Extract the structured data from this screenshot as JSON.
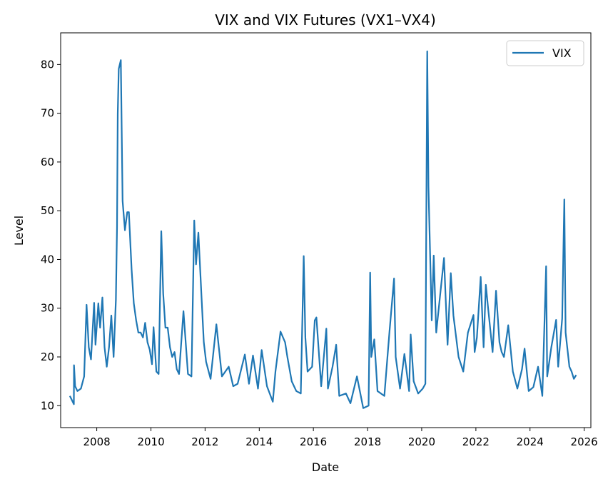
{
  "chart_data": {
    "type": "line",
    "title": "VIX and VIX Futures (VX1–VX4)",
    "xlabel": "Date",
    "ylabel": "Level",
    "xlim": [
      "2006-09-01",
      "2026-04-01"
    ],
    "ylim": [
      5.5,
      86.5
    ],
    "x_ticks": [
      "2008",
      "2010",
      "2012",
      "2014",
      "2016",
      "2018",
      "2020",
      "2022",
      "2024",
      "2026"
    ],
    "y_ticks": [
      10,
      20,
      30,
      40,
      50,
      60,
      70,
      80
    ],
    "grid": false,
    "legend_position": "top-right",
    "series": [
      {
        "name": "VIX",
        "color": "#1f77b4",
        "x": [
          "2007-01-03",
          "2007-02-26",
          "2007-02-28",
          "2007-03-15",
          "2007-04-15",
          "2007-06-01",
          "2007-07-15",
          "2007-08-16",
          "2007-09-15",
          "2007-10-15",
          "2007-11-26",
          "2007-12-15",
          "2008-01-22",
          "2008-02-15",
          "2008-03-17",
          "2008-04-15",
          "2008-05-15",
          "2008-06-15",
          "2008-07-15",
          "2008-08-15",
          "2008-09-15",
          "2008-09-30",
          "2008-10-10",
          "2008-10-24",
          "2008-11-20",
          "2008-12-15",
          "2009-01-15",
          "2009-02-15",
          "2009-03-09",
          "2009-04-15",
          "2009-05-15",
          "2009-06-15",
          "2009-07-15",
          "2009-08-15",
          "2009-09-15",
          "2009-10-15",
          "2009-11-15",
          "2009-12-15",
          "2010-01-15",
          "2010-02-05",
          "2010-03-15",
          "2010-04-15",
          "2010-05-20",
          "2010-06-15",
          "2010-07-15",
          "2010-08-15",
          "2010-09-15",
          "2010-10-15",
          "2010-11-15",
          "2010-12-15",
          "2011-01-15",
          "2011-03-16",
          "2011-05-15",
          "2011-07-01",
          "2011-08-08",
          "2011-09-01",
          "2011-10-03",
          "2011-11-15",
          "2011-12-15",
          "2012-01-15",
          "2012-03-15",
          "2012-06-01",
          "2012-08-15",
          "2012-11-15",
          "2013-01-15",
          "2013-03-15",
          "2013-06-20",
          "2013-08-15",
          "2013-10-08",
          "2013-12-15",
          "2014-02-03",
          "2014-04-15",
          "2014-07-03",
          "2014-08-07",
          "2014-10-15",
          "2014-12-15",
          "2015-01-15",
          "2015-03-15",
          "2015-05-15",
          "2015-07-15",
          "2015-08-24",
          "2015-09-15",
          "2015-10-15",
          "2015-12-15",
          "2016-01-20",
          "2016-02-11",
          "2016-04-15",
          "2016-06-24",
          "2016-07-15",
          "2016-09-15",
          "2016-11-04",
          "2016-12-15",
          "2017-03-15",
          "2017-05-15",
          "2017-08-11",
          "2017-11-03",
          "2018-01-15",
          "2018-02-05",
          "2018-02-20",
          "2018-04-02",
          "2018-05-15",
          "2018-08-15",
          "2018-10-24",
          "2018-12-24",
          "2019-01-15",
          "2019-03-15",
          "2019-05-13",
          "2019-07-15",
          "2019-08-05",
          "2019-09-15",
          "2019-11-15",
          "2020-01-15",
          "2020-02-20",
          "2020-03-16",
          "2020-04-01",
          "2020-05-15",
          "2020-06-11",
          "2020-07-15",
          "2020-09-08",
          "2020-10-28",
          "2020-12-15",
          "2021-01-27",
          "2021-03-04",
          "2021-05-12",
          "2021-07-15",
          "2021-09-15",
          "2021-11-30",
          "2021-12-15",
          "2022-01-15",
          "2022-03-07",
          "2022-04-15",
          "2022-05-15",
          "2022-06-15",
          "2022-08-15",
          "2022-09-30",
          "2022-11-15",
          "2022-12-15",
          "2023-01-15",
          "2023-03-13",
          "2023-05-15",
          "2023-07-15",
          "2023-09-15",
          "2023-10-20",
          "2023-12-15",
          "2024-02-15",
          "2024-04-19",
          "2024-06-15",
          "2024-08-05",
          "2024-08-20",
          "2024-10-15",
          "2024-12-18",
          "2025-01-15",
          "2025-03-10",
          "2025-04-08",
          "2025-04-25",
          "2025-06-15",
          "2025-07-15",
          "2025-08-15",
          "2025-09-15"
        ],
        "values": [
          12.0,
          10.3,
          18.3,
          14.0,
          13.0,
          13.5,
          16.0,
          30.7,
          22.0,
          19.5,
          31.1,
          22.5,
          31.0,
          26.0,
          32.2,
          22.0,
          18.0,
          22.0,
          28.5,
          20.0,
          31.7,
          46.7,
          69.9,
          79.1,
          80.9,
          52.0,
          46.0,
          49.7,
          49.7,
          38.0,
          31.0,
          27.5,
          25.0,
          25.0,
          24.0,
          27.0,
          23.0,
          21.5,
          18.5,
          26.1,
          17.0,
          16.5,
          45.8,
          33.0,
          26.0,
          26.0,
          22.0,
          20.0,
          21.0,
          17.5,
          16.5,
          29.4,
          16.5,
          16.0,
          48.0,
          39.0,
          45.5,
          32.0,
          23.0,
          19.0,
          15.5,
          26.7,
          16.0,
          18.0,
          14.0,
          14.5,
          20.5,
          14.5,
          20.3,
          13.5,
          21.4,
          14.0,
          10.8,
          17.0,
          25.2,
          23.0,
          20.0,
          15.0,
          13.0,
          12.5,
          40.7,
          24.0,
          17.0,
          18.0,
          27.5,
          28.1,
          14.0,
          25.8,
          13.5,
          18.0,
          22.5,
          12.0,
          12.5,
          10.5,
          16.0,
          9.5,
          10.0,
          37.3,
          20.0,
          23.6,
          13.0,
          12.0,
          25.2,
          36.1,
          20.0,
          13.5,
          20.6,
          13.0,
          24.6,
          15.0,
          12.5,
          13.5,
          14.5,
          82.7,
          55.0,
          27.5,
          40.8,
          25.0,
          33.0,
          40.3,
          22.5,
          37.2,
          28.5,
          20.0,
          17.0,
          25.0,
          28.6,
          21.0,
          24.0,
          36.4,
          22.0,
          34.8,
          30.0,
          21.0,
          33.6,
          23.0,
          21.0,
          20.0,
          26.5,
          17.0,
          13.5,
          17.5,
          21.7,
          13.0,
          13.8,
          18.0,
          12.0,
          38.6,
          16.0,
          22.0,
          27.6,
          18.0,
          27.9,
          52.3,
          25.0,
          18.0,
          17.0,
          15.5,
          16.3
        ]
      }
    ]
  }
}
